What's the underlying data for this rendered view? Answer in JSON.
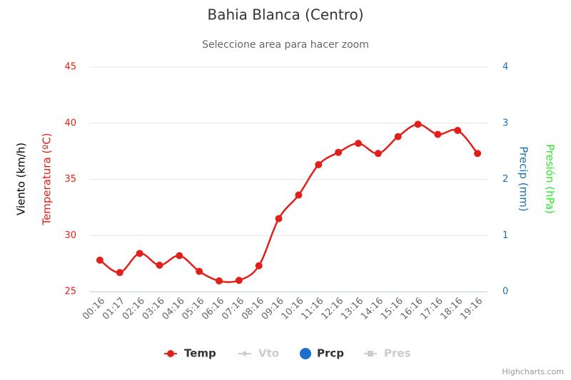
{
  "chart_data": {
    "type": "line",
    "title": "Bahia Blanca (Centro)",
    "subtitle": "Seleccione area para hacer zoom",
    "y_axis_titles": [
      {
        "text": "Viento (km/h)",
        "color": "#000000"
      },
      {
        "text": "Temperatura (ºC)",
        "color": "#e0201b"
      }
    ],
    "y2_axis_titles": [
      {
        "text": "Precip (mm)",
        "color": "#1c6fb8"
      },
      {
        "text": "Presión (hPa)",
        "color": "#2ee82e"
      }
    ],
    "categories": [
      "00:16",
      "01:17",
      "02:16",
      "03:16",
      "04:16",
      "05:16",
      "06:16",
      "07:16",
      "08:16",
      "09:16",
      "10:16",
      "11:16",
      "12:16",
      "13:16",
      "14:16",
      "15:16",
      "16:16",
      "17:16",
      "18:16",
      "19:16"
    ],
    "series": [
      {
        "name": "Temp",
        "color": "#e0201b",
        "values": [
          27.8,
          26.7,
          28.4,
          27.35,
          28.2,
          26.8,
          25.95,
          26.0,
          27.3,
          31.5,
          33.6,
          36.3,
          37.4,
          38.2,
          37.3,
          38.8,
          39.9,
          39.0,
          39.35,
          37.3
        ]
      }
    ],
    "legend": [
      {
        "name": "Temp",
        "color": "#e0201b",
        "symbol": "line-circle"
      },
      {
        "name": "Vto",
        "color": "#cccccc",
        "symbol": "line-diamond"
      },
      {
        "name": "Prcp",
        "color": "#1c6fcc",
        "symbol": "circle"
      },
      {
        "name": "Pres",
        "color": "#cccccc",
        "symbol": "line-square"
      }
    ],
    "ylim": [
      25,
      45
    ],
    "yticks": [
      25,
      30,
      35,
      40,
      45
    ],
    "y2lim": [
      0,
      4
    ],
    "y2ticks": [
      0,
      1,
      2,
      3,
      4
    ],
    "grid": true,
    "credits": "Highcharts.com"
  }
}
